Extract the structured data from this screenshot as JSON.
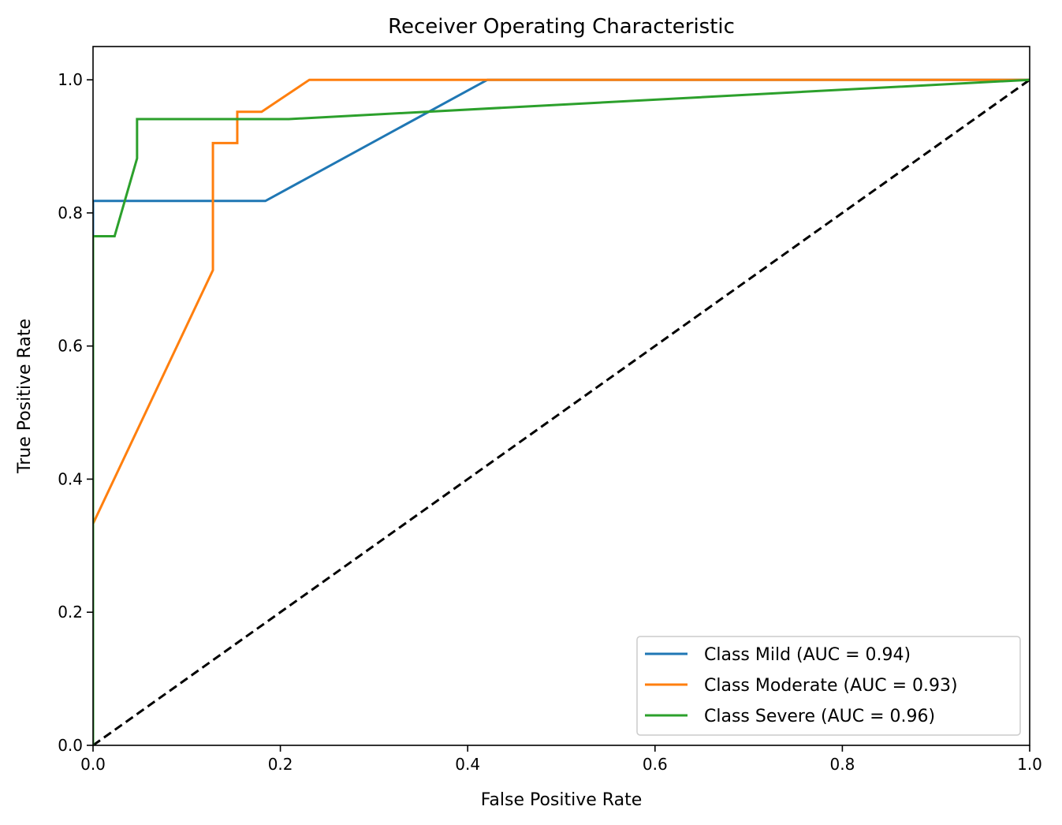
{
  "chart_data": {
    "type": "line",
    "title": "Receiver Operating Characteristic",
    "xlabel": "False Positive Rate",
    "ylabel": "True Positive Rate",
    "xlim": [
      0.0,
      1.0
    ],
    "ylim": [
      0.0,
      1.05
    ],
    "xticks": [
      0.0,
      0.2,
      0.4,
      0.6,
      0.8,
      1.0
    ],
    "yticks": [
      0.0,
      0.2,
      0.4,
      0.6,
      0.8,
      1.0
    ],
    "xtick_labels": [
      "0.0",
      "0.2",
      "0.4",
      "0.6",
      "0.8",
      "1.0"
    ],
    "ytick_labels": [
      "0.0",
      "0.2",
      "0.4",
      "0.6",
      "0.8",
      "1.0"
    ],
    "grid": false,
    "legend_position": "bottom-right",
    "series": [
      {
        "name": "Class Mild (AUC = 0.94)",
        "color": "#1f77b4",
        "x": [
          0.0,
          0.0,
          0.184,
          0.421,
          1.0
        ],
        "y": [
          0.0,
          0.818,
          0.818,
          1.0,
          1.0
        ]
      },
      {
        "name": "Class Moderate (AUC = 0.93)",
        "color": "#ff7f0e",
        "x": [
          0.0,
          0.0,
          0.128,
          0.128,
          0.154,
          0.154,
          0.18,
          0.231,
          1.0
        ],
        "y": [
          0.0,
          0.333,
          0.714,
          0.905,
          0.905,
          0.952,
          0.952,
          1.0,
          1.0
        ]
      },
      {
        "name": "Class Severe (AUC = 0.96)",
        "color": "#2ca02c",
        "x": [
          0.0,
          0.0,
          0.023,
          0.023,
          0.047,
          0.047,
          0.209,
          1.0
        ],
        "y": [
          0.0,
          0.765,
          0.765,
          0.765,
          0.882,
          0.941,
          0.941,
          1.0
        ]
      }
    ],
    "reference_line": {
      "x": [
        0.0,
        1.0
      ],
      "y": [
        0.0,
        1.0
      ],
      "color": "#000000",
      "style": "dashed"
    }
  }
}
